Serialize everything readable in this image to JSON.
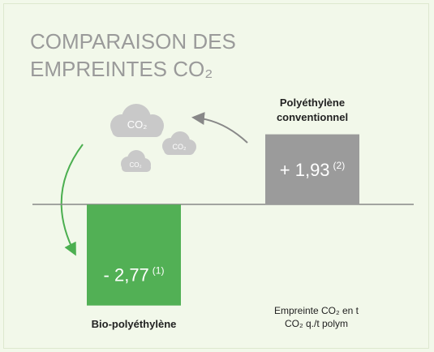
{
  "chart_data": {
    "type": "bar",
    "title": [
      "COMPARAISON DES",
      "EMPREINTES CO₂"
    ],
    "categories": [
      "Bio-polyéthylène",
      "Polyéthylène conventionnel"
    ],
    "values": [
      -2.77,
      1.93
    ],
    "value_labels": [
      "- 2,77",
      "+ 1,93"
    ],
    "footnotes": [
      "(1)",
      "(2)"
    ],
    "colors": [
      "#52b055",
      "#9b9b9b"
    ],
    "ylim": [
      -3.2,
      2.5
    ],
    "cloud_labels": [
      "CO₂",
      "CO₂",
      "CO₂"
    ],
    "unit_note": "Empreinte CO₂ en t CO₂ q./t polym"
  }
}
